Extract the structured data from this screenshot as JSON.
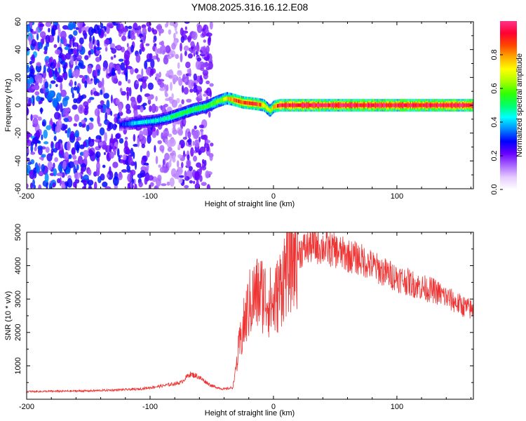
{
  "title": "YM08.2025.316.16.12.E08",
  "chart_data": [
    {
      "type": "heatmap",
      "name": "spectrogram",
      "xlabel": "Height of straight line (km)",
      "ylabel": "Frequency (Hz)",
      "xlim": [
        -200,
        162
      ],
      "ylim": [
        -60,
        60
      ],
      "xticks": [
        -200,
        -100,
        0,
        100
      ],
      "yticks": [
        -60,
        -40,
        -20,
        0,
        20,
        40,
        60
      ],
      "ytick_labels": [
        "-60",
        "-40",
        "-20",
        "0",
        "20",
        "40",
        "60"
      ],
      "colorbar": {
        "label": "Normalized spectral amplitude",
        "range": [
          0,
          1
        ],
        "ticks": [
          0.0,
          0.2,
          0.4,
          0.6,
          0.8
        ],
        "tick_labels": [
          "0.0",
          "0.2",
          "0.4",
          "0.6",
          "0.8"
        ],
        "colors": [
          "#ffffff",
          "#e6ccff",
          "#aa66ff",
          "#6600ff",
          "#0000ff",
          "#0088ff",
          "#00ffff",
          "#00ff66",
          "#33ff00",
          "#aaff00",
          "#ffff00",
          "#ffaa00",
          "#ff4400",
          "#ff0033",
          "#ff3388"
        ]
      },
      "ridge": {
        "x": [
          -125,
          -115,
          -105,
          -95,
          -85,
          -75,
          -65,
          -55,
          -45,
          -38,
          -33,
          -25,
          -15,
          -8,
          -3,
          0,
          5,
          10,
          20,
          40,
          70,
          100,
          162
        ],
        "y": [
          -14,
          -13,
          -12,
          -11,
          -9,
          -6,
          -3,
          -1,
          3,
          5,
          4,
          2,
          1,
          0,
          -4,
          -1,
          0,
          0,
          0,
          0,
          0,
          0,
          0
        ],
        "amplitude": [
          0.25,
          0.35,
          0.4,
          0.4,
          0.45,
          0.5,
          0.5,
          0.5,
          0.55,
          0.65,
          0.75,
          0.8,
          0.85,
          0.7,
          0.6,
          0.7,
          0.85,
          0.88,
          0.9,
          0.9,
          0.9,
          0.9,
          0.9
        ]
      },
      "noise_region": {
        "x": [
          -200,
          -50
        ],
        "y": [
          -60,
          60
        ]
      }
    },
    {
      "type": "line",
      "name": "snr",
      "xlabel": "Height of straight line (km)",
      "ylabel": "SNR (10 * v/v)",
      "xlim": [
        -200,
        162
      ],
      "ylim": [
        0,
        5000
      ],
      "xticks": [
        -200,
        -100,
        0,
        100
      ],
      "yticks": [
        1000,
        2000,
        3000,
        4000,
        5000
      ],
      "color": "#ee3333",
      "series": {
        "x": [
          -200,
          -150,
          -110,
          -90,
          -75,
          -68,
          -62,
          -50,
          -40,
          -33,
          -28,
          -24,
          -20,
          -15,
          -10,
          -5,
          0,
          5,
          10,
          15,
          20,
          25,
          30,
          40,
          50,
          60,
          70,
          80,
          90,
          100,
          110,
          120,
          130,
          140,
          150,
          162
        ],
        "y": [
          230,
          250,
          300,
          400,
          500,
          750,
          700,
          400,
          300,
          350,
          1500,
          2200,
          2800,
          3100,
          3200,
          3000,
          2800,
          3300,
          3900,
          4200,
          4400,
          4500,
          4600,
          4550,
          4450,
          4300,
          4200,
          4000,
          3800,
          3650,
          3500,
          3350,
          3250,
          3050,
          2850,
          2650
        ]
      }
    }
  ],
  "noise": {
    "spectrogram_blob_count": 1200,
    "snr_noise_amplitude": 0.12
  }
}
